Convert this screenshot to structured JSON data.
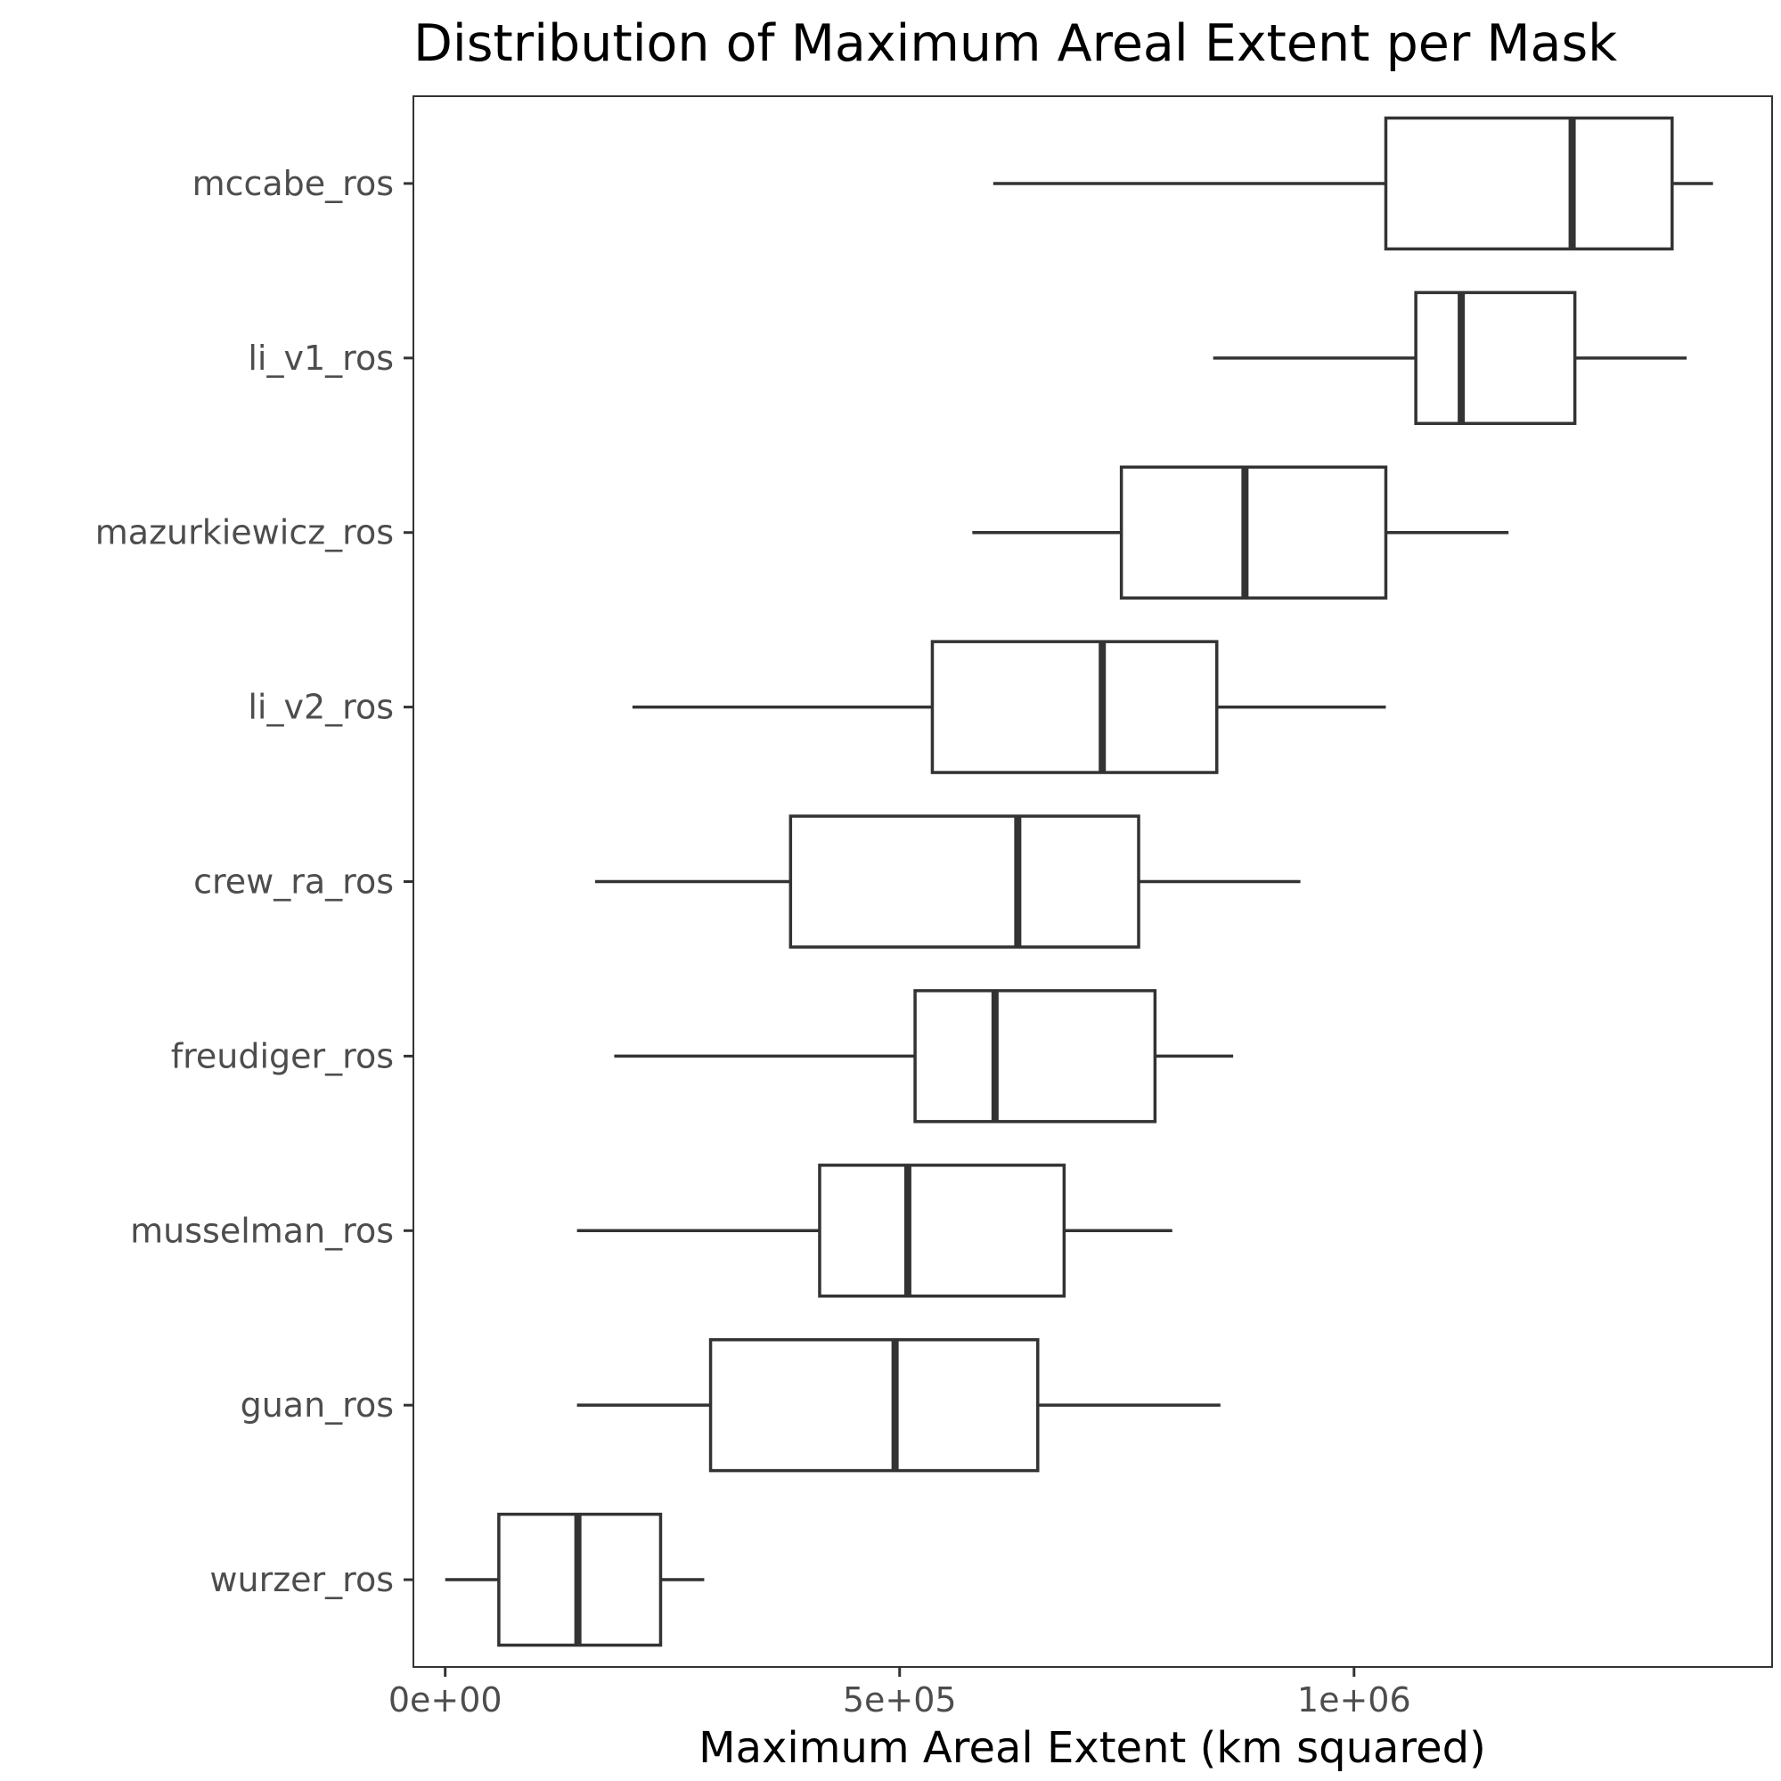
{
  "chart_data": {
    "type": "boxplot",
    "orientation": "horizontal",
    "title": "Distribution of Maximum Areal Extent per Mask",
    "xlabel": "Maximum Areal Extent (km squared)",
    "ylabel": "",
    "xlim": [
      -35000,
      1460000
    ],
    "xticks": [
      {
        "value": 0,
        "label": "0e+00"
      },
      {
        "value": 500000,
        "label": "5e+05"
      },
      {
        "value": 1000000,
        "label": "1e+06"
      }
    ],
    "grid": false,
    "colors": {
      "stroke": "#333333",
      "fill": "#ffffff",
      "tick_text": "#4d4d4d"
    },
    "categories": [
      "mccabe_ros",
      "li_v1_ros",
      "mazurkiewicz_ros",
      "li_v2_ros",
      "crew_ra_ros",
      "freudiger_ros",
      "musselman_ros",
      "guan_ros",
      "wurzer_ros"
    ],
    "series": [
      {
        "category": "mccabe_ros",
        "min": 603000,
        "q1": 1035000,
        "median": 1240000,
        "q3": 1350000,
        "max": 1395000
      },
      {
        "category": "li_v1_ros",
        "min": 845000,
        "q1": 1068000,
        "median": 1118000,
        "q3": 1243000,
        "max": 1366000
      },
      {
        "category": "mazurkiewicz_ros",
        "min": 580000,
        "q1": 744000,
        "median": 880000,
        "q3": 1035000,
        "max": 1170000
      },
      {
        "category": "li_v2_ros",
        "min": 206000,
        "q1": 536000,
        "median": 723000,
        "q3": 849000,
        "max": 1035000
      },
      {
        "category": "crew_ra_ros",
        "min": 165000,
        "q1": 380000,
        "median": 630000,
        "q3": 763000,
        "max": 941000
      },
      {
        "category": "freudiger_ros",
        "min": 186000,
        "q1": 517000,
        "median": 605000,
        "q3": 781000,
        "max": 867000
      },
      {
        "category": "musselman_ros",
        "min": 145000,
        "q1": 412000,
        "median": 509000,
        "q3": 681000,
        "max": 800000
      },
      {
        "category": "guan_ros",
        "min": 145000,
        "q1": 292000,
        "median": 495000,
        "q3": 652000,
        "max": 853000
      },
      {
        "category": "wurzer_ros",
        "min": 0,
        "q1": 59000,
        "median": 146000,
        "q3": 237000,
        "max": 285000
      }
    ]
  }
}
